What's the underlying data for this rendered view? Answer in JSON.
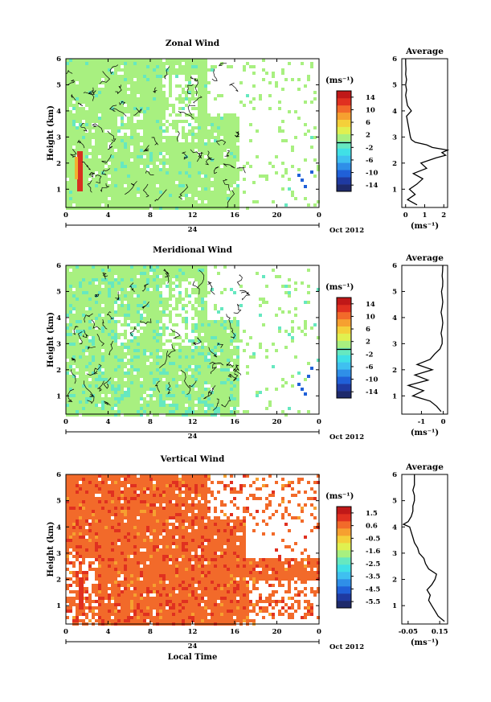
{
  "chart_data": [
    {
      "type": "heatmap",
      "title": "Zonal Wind",
      "ylabel": "Height (km)",
      "xlabel": "",
      "x_ticks": [
        "0",
        "4",
        "8",
        "12",
        "16",
        "20",
        "0"
      ],
      "y_ticks": [
        "1",
        "2",
        "3",
        "4",
        "5",
        "6"
      ],
      "xlim": [
        0,
        24
      ],
      "ylim": [
        0.3,
        6
      ],
      "day_label": "24",
      "month_label": "Oct 2012",
      "colorbar": {
        "unit": "(ms⁻¹)",
        "ticks": [
          "14",
          "10",
          "6",
          "2",
          "-2",
          "-6",
          "-10",
          "-14"
        ],
        "range": [
          -16,
          16
        ],
        "colors": [
          "#1e2a6b",
          "#1f3aa1",
          "#2060d8",
          "#2f8fe8",
          "#3fc0f0",
          "#40e0e6",
          "#66e8c0",
          "#a8f080",
          "#e0f050",
          "#f4d03a",
          "#f6a030",
          "#f26a2a",
          "#e03020",
          "#c01818"
        ]
      },
      "cell_dominant_values": [
        0.5,
        0.1,
        -1.6
      ],
      "profile": {
        "title": "Average",
        "xlabel": "(ms⁻¹)",
        "x_ticks": [
          "0",
          "1",
          "2"
        ],
        "xlim": [
          -0.2,
          2.2
        ],
        "y_ticks": [
          "1",
          "2",
          "3",
          "4",
          "5",
          "6"
        ],
        "ylim": [
          0.3,
          6
        ],
        "y": [
          0.4,
          0.6,
          0.8,
          1.0,
          1.2,
          1.4,
          1.6,
          1.8,
          2.0,
          2.2,
          2.3,
          2.4,
          2.5,
          2.6,
          2.7,
          2.8,
          2.9,
          3.0,
          3.2,
          3.4,
          3.6,
          3.8,
          4.0,
          4.2,
          4.4,
          4.6,
          4.8,
          5.0,
          5.2,
          5.4,
          5.6,
          5.8,
          6.0
        ],
        "x": [
          0.6,
          0.1,
          0.5,
          0.2,
          0.6,
          0.9,
          0.4,
          1.1,
          0.8,
          1.6,
          2.1,
          1.9,
          2.2,
          1.4,
          1.1,
          0.5,
          0.3,
          0.25,
          0.2,
          0.15,
          0.1,
          0.05,
          0.3,
          0.1,
          0.05,
          0.0,
          0.05,
          0.0,
          0.05,
          0.0,
          0.02,
          0.0,
          0.0
        ]
      }
    },
    {
      "type": "heatmap",
      "title": "Meridional Wind",
      "ylabel": "Height (km)",
      "xlabel": "",
      "x_ticks": [
        "0",
        "4",
        "8",
        "12",
        "16",
        "20",
        "0"
      ],
      "y_ticks": [
        "1",
        "2",
        "3",
        "4",
        "5",
        "6"
      ],
      "xlim": [
        0,
        24
      ],
      "ylim": [
        0.3,
        6
      ],
      "day_label": "24",
      "month_label": "Oct 2012",
      "colorbar": {
        "unit": "(ms⁻¹)",
        "ticks": [
          "14",
          "10",
          "6",
          "2",
          "-2",
          "-6",
          "-10",
          "-14"
        ],
        "range": [
          -16,
          16
        ],
        "colors": [
          "#1e2a6b",
          "#1f3aa1",
          "#2060d8",
          "#2f8fe8",
          "#3fc0f0",
          "#40e0e6",
          "#66e8c0",
          "#a8f080",
          "#e0f050",
          "#f4d03a",
          "#f6a030",
          "#f26a2a",
          "#e03020",
          "#c01818"
        ]
      },
      "cell_dominant_values": [
        0.2,
        -0.8,
        -1.8
      ],
      "profile": {
        "title": "Average",
        "xlabel": "(ms⁻¹)",
        "x_ticks": [
          "-1",
          "0"
        ],
        "xlim": [
          -1.9,
          0.2
        ],
        "y_ticks": [
          "1",
          "2",
          "3",
          "4",
          "5",
          "6"
        ],
        "ylim": [
          0.3,
          6
        ],
        "y": [
          0.4,
          0.6,
          0.8,
          1.0,
          1.2,
          1.4,
          1.6,
          1.8,
          2.0,
          2.2,
          2.4,
          2.6,
          2.8,
          3.0,
          3.2,
          3.4,
          3.6,
          3.8,
          4.0,
          4.2,
          4.4,
          4.6,
          4.8,
          5.0,
          5.2,
          5.4,
          5.6,
          5.8,
          6.0
        ],
        "x": [
          -0.1,
          -0.3,
          -0.6,
          -1.4,
          -0.9,
          -1.6,
          -0.7,
          -1.3,
          -0.5,
          -1.2,
          -0.6,
          -0.4,
          -0.15,
          -0.05,
          -0.05,
          -0.1,
          -0.05,
          -0.02,
          -0.05,
          -0.1,
          -0.05,
          -0.02,
          -0.05,
          -0.08,
          -0.03,
          -0.02,
          -0.05,
          -0.03,
          -0.02
        ]
      }
    },
    {
      "type": "heatmap",
      "title": "Vertical Wind",
      "ylabel": "Height (km)",
      "xlabel": "Local Time",
      "x_ticks": [
        "0",
        "4",
        "8",
        "12",
        "16",
        "20",
        "0"
      ],
      "y_ticks": [
        "1",
        "2",
        "3",
        "4",
        "5",
        "6"
      ],
      "xlim": [
        0,
        24
      ],
      "ylim": [
        0.3,
        6
      ],
      "day_label": "24",
      "month_label": "Oct 2012",
      "colorbar": {
        "unit": "(ms⁻¹)",
        "ticks": [
          "1.5",
          "0.6",
          "-0.5",
          "-1.6",
          "-2.5",
          "-3.5",
          "-4.5",
          "-5.5"
        ],
        "range": [
          -6,
          2
        ],
        "colors": [
          "#1e2a6b",
          "#1f3aa1",
          "#2060d8",
          "#2f8fe8",
          "#3fc0f0",
          "#40e0e6",
          "#66e8c0",
          "#a8f080",
          "#e0f050",
          "#f4d03a",
          "#f6a030",
          "#f26a2a",
          "#e03020",
          "#c01818"
        ]
      },
      "cell_dominant_values": [
        0.6,
        0.9,
        0.2
      ],
      "profile": {
        "title": "Average",
        "xlabel": "(ms⁻¹)",
        "x_ticks": [
          "-0.05",
          "0.15"
        ],
        "xlim": [
          -0.09,
          0.2
        ],
        "y_ticks": [
          "1",
          "2",
          "3",
          "4",
          "5",
          "6"
        ],
        "ylim": [
          0.3,
          6
        ],
        "y": [
          0.4,
          0.6,
          0.8,
          1.0,
          1.2,
          1.4,
          1.6,
          1.8,
          2.0,
          2.2,
          2.4,
          2.6,
          2.8,
          3.0,
          3.2,
          3.4,
          3.6,
          3.8,
          4.0,
          4.1,
          4.2,
          4.3,
          4.4,
          4.6,
          4.8,
          5.0,
          5.2,
          5.4,
          5.6,
          5.8,
          6.0
        ],
        "x": [
          0.18,
          0.14,
          0.12,
          0.1,
          0.08,
          0.09,
          0.07,
          0.1,
          0.12,
          0.13,
          0.08,
          0.06,
          0.05,
          0.02,
          0.01,
          -0.01,
          -0.02,
          -0.03,
          -0.04,
          -0.08,
          -0.05,
          -0.04,
          -0.03,
          -0.02,
          -0.02,
          -0.01,
          -0.01,
          -0.02,
          -0.01,
          -0.01,
          -0.01
        ]
      }
    }
  ]
}
